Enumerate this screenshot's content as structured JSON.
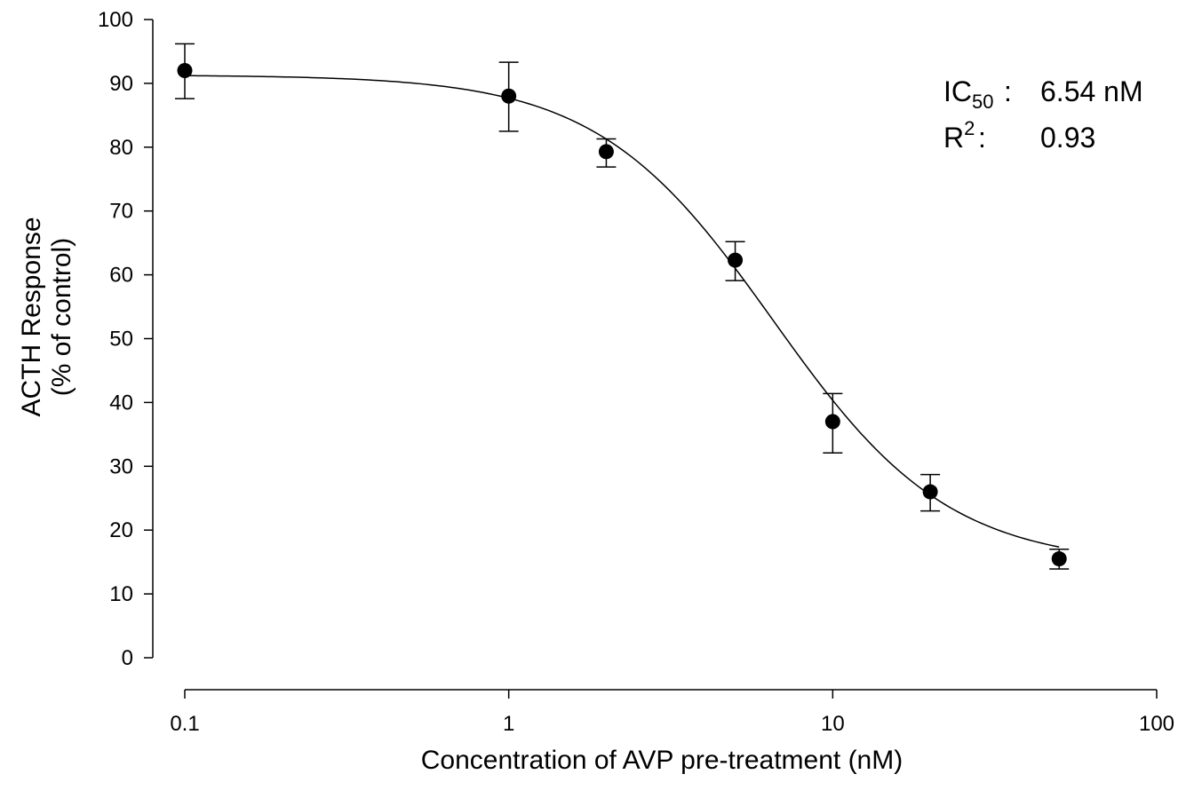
{
  "chart_data": {
    "type": "scatter",
    "title": "",
    "xlabel": "Concentration of AVP pre-treatment (nM)",
    "ylabel_line1": "ACTH Response",
    "ylabel_line2": "(% of control)",
    "x_scale": "log",
    "xlim": [
      0.1,
      100
    ],
    "ylim": [
      0,
      100
    ],
    "x_ticks": [
      0.1,
      1,
      10,
      100
    ],
    "x_tick_labels": [
      "0.1",
      "1",
      "10",
      "100"
    ],
    "y_ticks": [
      0,
      10,
      20,
      30,
      40,
      50,
      60,
      70,
      80,
      90,
      100
    ],
    "y_tick_labels": [
      "0",
      "10",
      "20",
      "30",
      "40",
      "50",
      "60",
      "70",
      "80",
      "90",
      "100"
    ],
    "grid": false,
    "points": [
      {
        "x": 0.1,
        "y": 92,
        "err_low": 87.6,
        "err_high": 96.2
      },
      {
        "x": 1,
        "y": 88,
        "err_low": 82.5,
        "err_high": 93.3
      },
      {
        "x": 2,
        "y": 79.3,
        "err_low": 76.9,
        "err_high": 81.3
      },
      {
        "x": 5,
        "y": 62.3,
        "err_low": 59.1,
        "err_high": 65.2
      },
      {
        "x": 10,
        "y": 37,
        "err_low": 32.1,
        "err_high": 41.4
      },
      {
        "x": 20,
        "y": 26,
        "err_low": 23,
        "err_high": 28.7
      },
      {
        "x": 50,
        "y": 15.5,
        "err_low": 13.9,
        "err_high": 17
      }
    ],
    "fit": {
      "model": "sigmoidal",
      "top": 91.3,
      "bottom": 14.5,
      "ic50": 6.54,
      "hill": 1.6
    },
    "annotations": {
      "ic50_main": "IC",
      "ic50_sub": "50",
      "ic50_sep": ":",
      "ic50_value": "6.54 nM",
      "r2_main": "R",
      "r2_sup": "2",
      "r2_sep": ":",
      "r2_value": "0.93"
    }
  }
}
